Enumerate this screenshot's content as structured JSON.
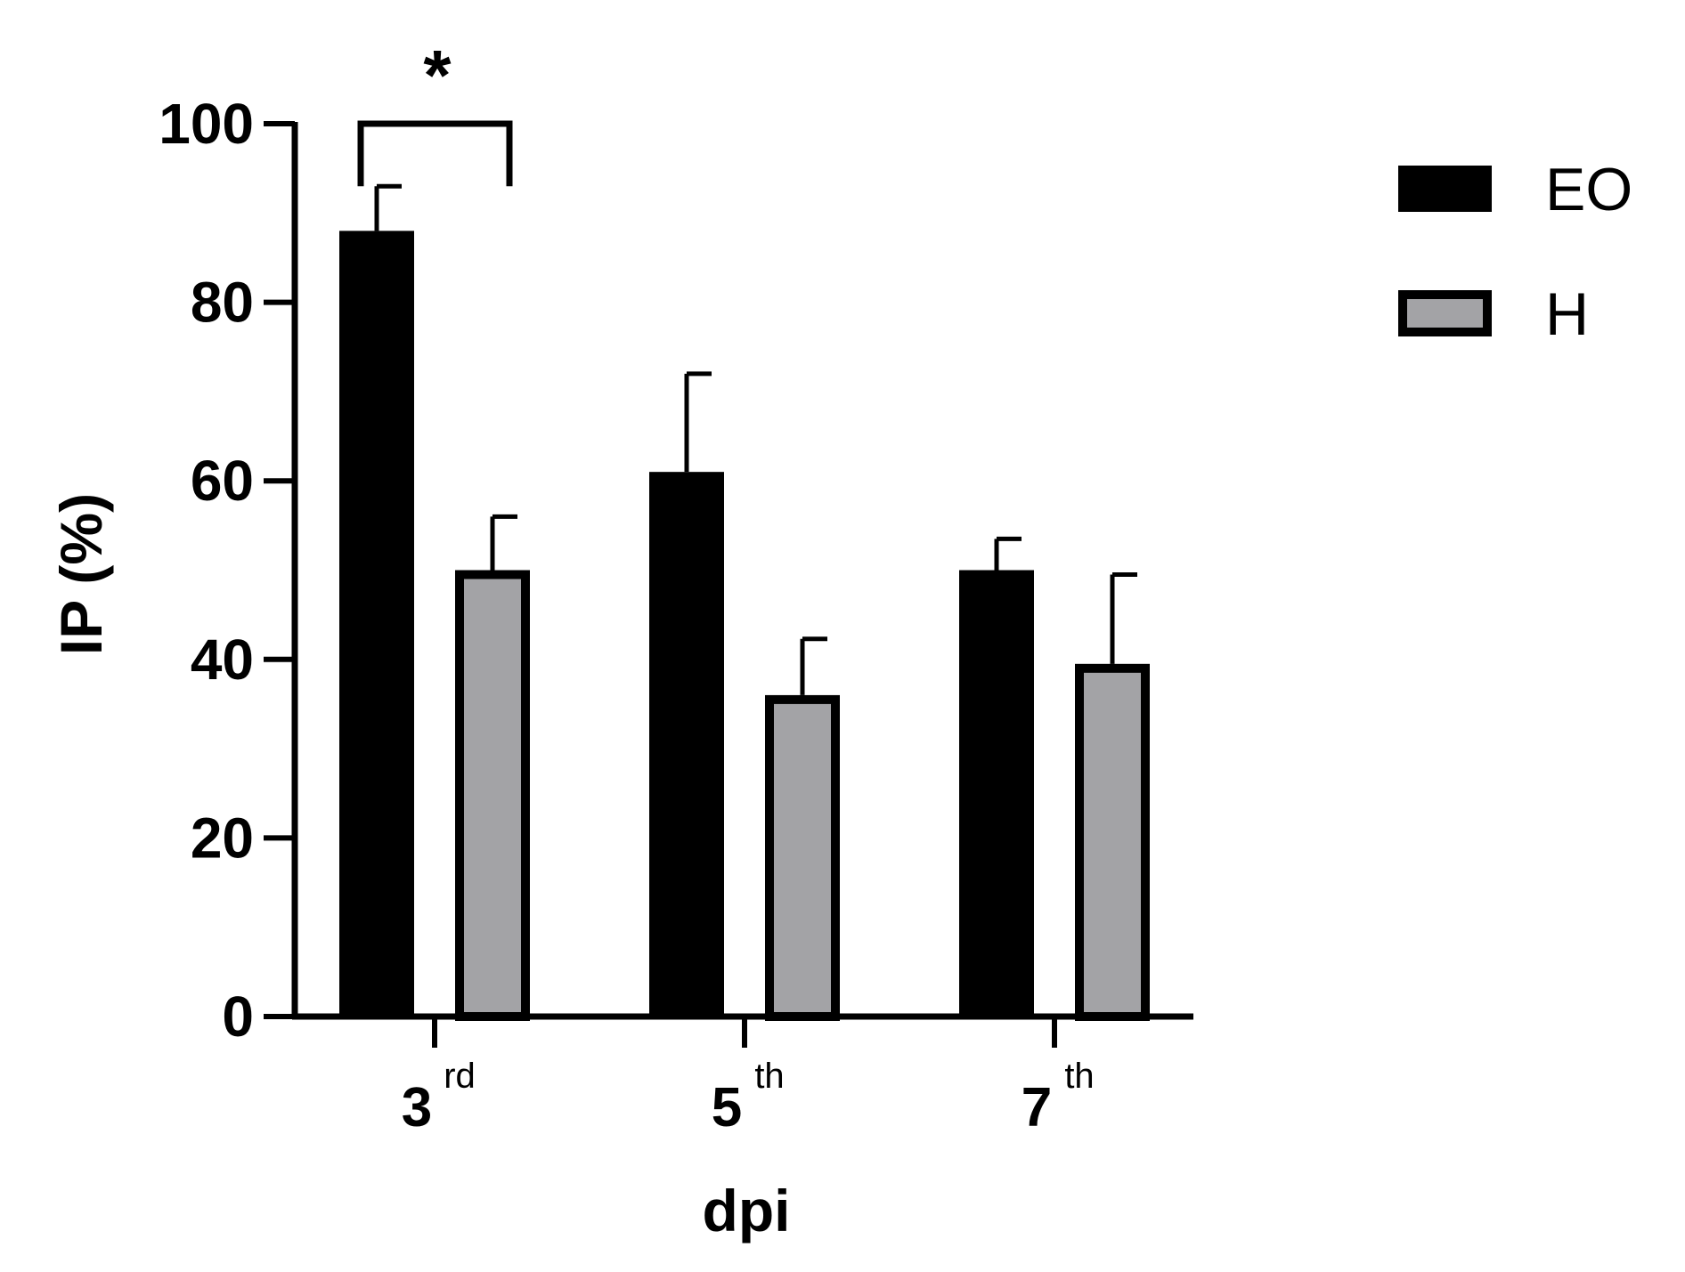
{
  "chart_data": {
    "type": "bar",
    "categories": [
      {
        "main": "3",
        "sup": "rd"
      },
      {
        "main": "5",
        "sup": "th"
      },
      {
        "main": "7",
        "sup": "th"
      }
    ],
    "series": [
      {
        "name": "EO",
        "values": [
          88,
          61,
          50
        ],
        "errors": [
          5,
          11,
          3.5
        ],
        "color": "#000000"
      },
      {
        "name": "H",
        "values": [
          50,
          36,
          39.5
        ],
        "errors": [
          6,
          6.3,
          10
        ],
        "color": "#a3a3a6"
      }
    ],
    "xlabel": "dpi",
    "ylabel": "IP (%)",
    "ylim": [
      0,
      100
    ],
    "yticks": [
      0,
      20,
      40,
      60,
      80,
      100
    ],
    "ytick_labels": [
      "0",
      "20",
      "40",
      "60",
      "80",
      "100"
    ],
    "grid": false,
    "legend": "top-right",
    "annotations": [
      {
        "label": "*",
        "category_index": 0
      }
    ]
  }
}
